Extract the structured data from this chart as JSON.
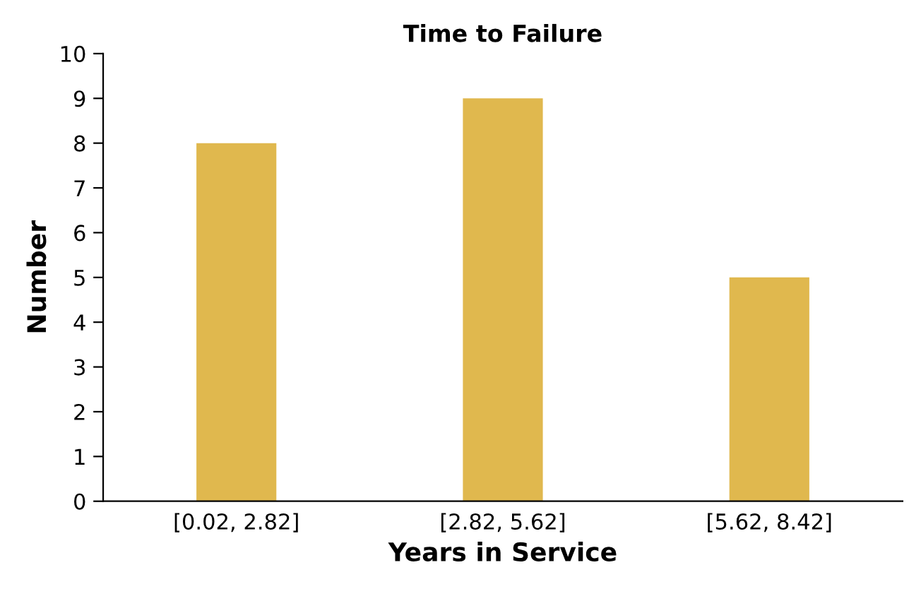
{
  "chart_data": {
    "type": "bar",
    "title": "Time to Failure",
    "xlabel": "Years in Service",
    "ylabel": "Number",
    "categories": [
      "[0.02, 2.82]",
      "[2.82, 5.62]",
      "[5.62, 8.42]"
    ],
    "values": [
      8,
      9,
      5
    ],
    "color": "#e0b84e",
    "ylim": [
      0,
      10
    ],
    "yticks": [
      0,
      1,
      2,
      3,
      4,
      5,
      6,
      7,
      8,
      9,
      10
    ],
    "grid": false,
    "legend": false
  }
}
